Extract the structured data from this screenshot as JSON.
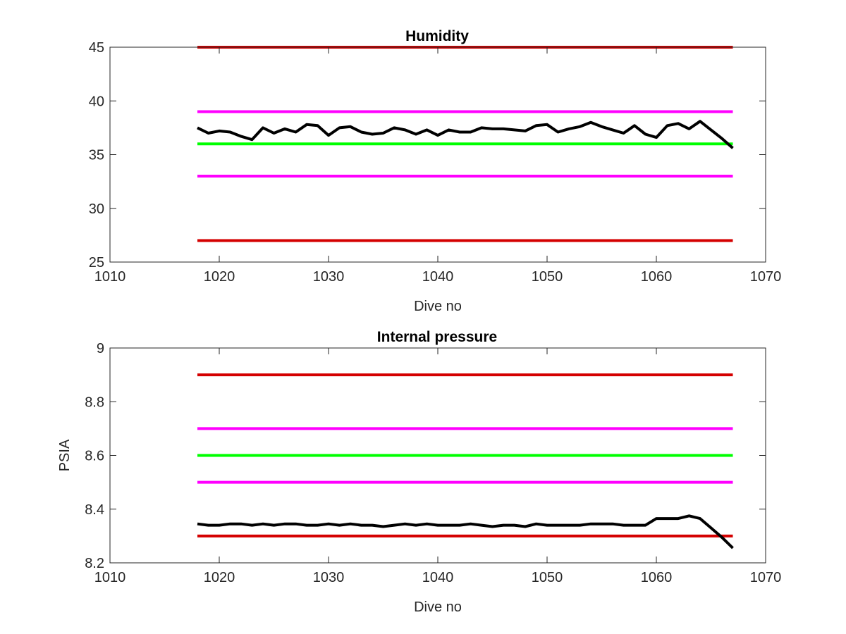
{
  "chart_data": [
    {
      "type": "line",
      "title": "Humidity",
      "xlabel": "Dive no",
      "ylabel": "",
      "xlim": [
        1010,
        1070
      ],
      "ylim": [
        25,
        45
      ],
      "xticks": [
        "1010",
        "1020",
        "1030",
        "1040",
        "1050",
        "1060",
        "1070"
      ],
      "yticks": [
        "25",
        "30",
        "35",
        "40",
        "45"
      ],
      "reference_lines": [
        {
          "y": 45,
          "x": [
            1018,
            1067
          ],
          "color": "#d40000"
        },
        {
          "y": 39,
          "x": [
            1018,
            1067
          ],
          "color": "#ff00ff"
        },
        {
          "y": 36,
          "x": [
            1018,
            1067
          ],
          "color": "#00ff00"
        },
        {
          "y": 33,
          "x": [
            1018,
            1067
          ],
          "color": "#ff00ff"
        },
        {
          "y": 27,
          "x": [
            1018,
            1067
          ],
          "color": "#d40000"
        }
      ],
      "series": [
        {
          "color": "#000000",
          "x": [
            1018,
            1019,
            1020,
            1021,
            1022,
            1023,
            1024,
            1025,
            1026,
            1027,
            1028,
            1029,
            1030,
            1031,
            1032,
            1033,
            1034,
            1035,
            1036,
            1037,
            1038,
            1039,
            1040,
            1041,
            1042,
            1043,
            1044,
            1045,
            1046,
            1047,
            1048,
            1049,
            1050,
            1051,
            1052,
            1053,
            1054,
            1055,
            1056,
            1057,
            1058,
            1059,
            1060,
            1061,
            1062,
            1063,
            1064,
            1065,
            1066,
            1067
          ],
          "y": [
            37.5,
            37.0,
            37.2,
            37.1,
            36.7,
            36.4,
            37.5,
            37.0,
            37.4,
            37.1,
            37.8,
            37.7,
            36.8,
            37.5,
            37.6,
            37.1,
            36.9,
            37.0,
            37.5,
            37.3,
            36.9,
            37.3,
            36.8,
            37.3,
            37.1,
            37.1,
            37.5,
            37.4,
            37.4,
            37.3,
            37.2,
            37.7,
            37.8,
            37.1,
            37.4,
            37.6,
            38.0,
            37.6,
            37.3,
            37.0,
            37.7,
            36.9,
            36.6,
            37.7,
            37.9,
            37.4,
            38.1,
            37.3,
            36.5,
            35.6
          ]
        }
      ]
    },
    {
      "type": "line",
      "title": "Internal pressure",
      "xlabel": "Dive no",
      "ylabel": "PSIA",
      "xlim": [
        1010,
        1070
      ],
      "ylim": [
        8.2,
        9.0
      ],
      "xticks": [
        "1010",
        "1020",
        "1030",
        "1040",
        "1050",
        "1060",
        "1070"
      ],
      "yticks": [
        "8.2",
        "8.4",
        "8.6",
        "8.8",
        "9"
      ],
      "reference_lines": [
        {
          "y": 8.9,
          "x": [
            1018,
            1067
          ],
          "color": "#d40000"
        },
        {
          "y": 8.7,
          "x": [
            1018,
            1067
          ],
          "color": "#ff00ff"
        },
        {
          "y": 8.6,
          "x": [
            1018,
            1067
          ],
          "color": "#00ff00"
        },
        {
          "y": 8.5,
          "x": [
            1018,
            1067
          ],
          "color": "#ff00ff"
        },
        {
          "y": 8.3,
          "x": [
            1018,
            1067
          ],
          "color": "#d40000"
        }
      ],
      "series": [
        {
          "color": "#000000",
          "x": [
            1018,
            1019,
            1020,
            1021,
            1022,
            1023,
            1024,
            1025,
            1026,
            1027,
            1028,
            1029,
            1030,
            1031,
            1032,
            1033,
            1034,
            1035,
            1036,
            1037,
            1038,
            1039,
            1040,
            1041,
            1042,
            1043,
            1044,
            1045,
            1046,
            1047,
            1048,
            1049,
            1050,
            1051,
            1052,
            1053,
            1054,
            1055,
            1056,
            1057,
            1058,
            1059,
            1060,
            1061,
            1062,
            1063,
            1064,
            1065,
            1066,
            1067
          ],
          "y": [
            8.345,
            8.34,
            8.34,
            8.345,
            8.345,
            8.34,
            8.345,
            8.34,
            8.345,
            8.345,
            8.34,
            8.34,
            8.345,
            8.34,
            8.345,
            8.34,
            8.34,
            8.335,
            8.34,
            8.345,
            8.34,
            8.345,
            8.34,
            8.34,
            8.34,
            8.345,
            8.34,
            8.335,
            8.34,
            8.34,
            8.335,
            8.345,
            8.34,
            8.34,
            8.34,
            8.34,
            8.345,
            8.345,
            8.345,
            8.34,
            8.34,
            8.34,
            8.365,
            8.365,
            8.365,
            8.375,
            8.365,
            8.33,
            8.295,
            8.255
          ]
        }
      ]
    }
  ]
}
